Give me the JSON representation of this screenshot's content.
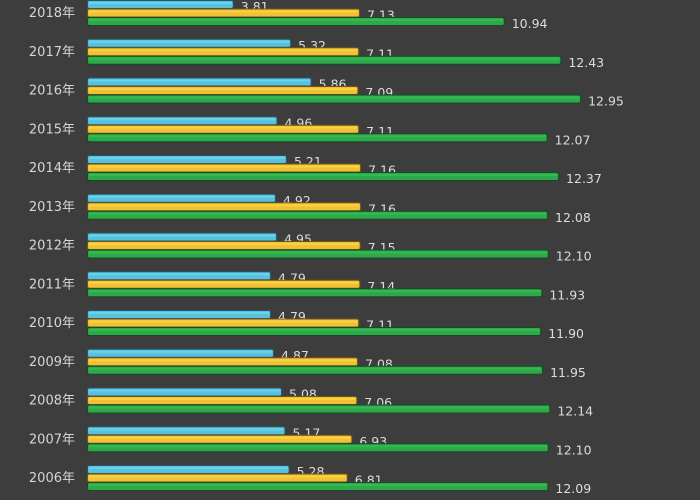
{
  "chart_data": {
    "type": "bar",
    "orientation": "horizontal",
    "categories": [
      "2018年",
      "2017年",
      "2016年",
      "2015年",
      "2014年",
      "2013年",
      "2012年",
      "2011年",
      "2010年",
      "2009年",
      "2008年",
      "2007年",
      "2006年"
    ],
    "series": [
      {
        "color": "#5bc0de",
        "values": [
          3.81,
          5.32,
          5.86,
          4.96,
          5.21,
          4.92,
          4.95,
          4.79,
          4.79,
          4.87,
          5.08,
          5.17,
          5.28
        ]
      },
      {
        "color": "#f2c037",
        "values": [
          7.13,
          7.11,
          7.09,
          7.11,
          7.16,
          7.16,
          7.15,
          7.14,
          7.11,
          7.08,
          7.06,
          6.93,
          6.81
        ]
      },
      {
        "color": "#2ea84a",
        "values": [
          10.94,
          12.43,
          12.95,
          12.07,
          12.37,
          12.08,
          12.1,
          11.93,
          11.9,
          11.95,
          12.14,
          12.1,
          12.09
        ]
      }
    ],
    "grid": false,
    "legend": "none"
  }
}
